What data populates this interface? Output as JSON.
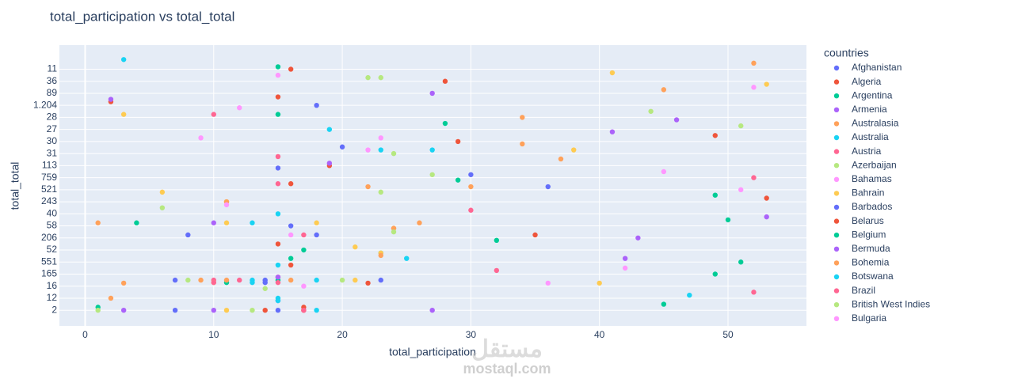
{
  "chart_data": {
    "type": "scatter",
    "title": "total_participation vs total_total",
    "x_label": "total_participation",
    "y_label": "total_total",
    "legend_title": "countries",
    "watermark": "مستقل",
    "watermark_sub": "mostaql.com",
    "xlim": [
      -2,
      56.1
    ],
    "xticks": [
      0,
      10,
      20,
      30,
      40,
      50
    ],
    "ylim": [
      -1.3,
      22.0
    ],
    "yticks": [
      {
        "value": 0,
        "label": "2"
      },
      {
        "value": 1,
        "label": "12"
      },
      {
        "value": 2,
        "label": "16"
      },
      {
        "value": 3,
        "label": "165"
      },
      {
        "value": 4,
        "label": "551"
      },
      {
        "value": 5,
        "label": "52"
      },
      {
        "value": 6,
        "label": "206"
      },
      {
        "value": 7,
        "label": "58"
      },
      {
        "value": 8,
        "label": "40"
      },
      {
        "value": 9,
        "label": "243"
      },
      {
        "value": 10,
        "label": "521"
      },
      {
        "value": 11,
        "label": "759"
      },
      {
        "value": 12,
        "label": "113"
      },
      {
        "value": 13,
        "label": "31"
      },
      {
        "value": 14,
        "label": "30"
      },
      {
        "value": 15,
        "label": "27"
      },
      {
        "value": 16,
        "label": "28"
      },
      {
        "value": 17,
        "label": "1.204"
      },
      {
        "value": 18,
        "label": "89"
      },
      {
        "value": 19,
        "label": "36"
      },
      {
        "value": 20,
        "label": "11"
      }
    ],
    "grid": true,
    "legend_position": "right",
    "series": [
      {
        "name": "Afghanistan",
        "color": "#636efa",
        "x": [
          18,
          20,
          15,
          30,
          36,
          16,
          8
        ],
        "values": [
          17,
          13.55,
          11.8,
          11.25,
          10.25,
          7,
          6.25
        ]
      },
      {
        "name": "Algeria",
        "color": "#EF553B",
        "x": [
          16,
          28,
          2,
          15,
          49,
          29,
          19,
          16
        ],
        "values": [
          20,
          19,
          17.3,
          17.7,
          14.5,
          14,
          12,
          10.5
        ]
      },
      {
        "name": "Argentina",
        "color": "#00cc96",
        "x": [
          15,
          15,
          28,
          29,
          49,
          4,
          50,
          32
        ],
        "values": [
          20.2,
          16.25,
          15.5,
          10.8,
          9.55,
          7.25,
          7.5,
          5.8
        ]
      },
      {
        "name": "Armenia",
        "color": "#ab63fa",
        "x": [
          27,
          2,
          46,
          41,
          19,
          53,
          10
        ],
        "values": [
          18,
          17.5,
          15.8,
          14.8,
          12.2,
          7.75,
          7.25
        ]
      },
      {
        "name": "Australasia",
        "color": "#FFA15A",
        "x": [
          52,
          45,
          34,
          34,
          37,
          22,
          30,
          1,
          26
        ],
        "values": [
          20.5,
          18.3,
          16,
          13.8,
          12.55,
          10.25,
          10.25,
          7.25,
          7.25
        ]
      },
      {
        "name": "Australia",
        "color": "#19d3f3",
        "x": [
          3,
          19,
          23,
          27,
          15,
          13,
          23,
          25
        ],
        "values": [
          20.8,
          15,
          13.3,
          13.3,
          8,
          7.25,
          4.75,
          4.3
        ]
      },
      {
        "name": "Austria",
        "color": "#FF6692",
        "x": [
          10,
          30,
          15,
          15,
          52,
          10,
          12
        ],
        "values": [
          16.25,
          8.3,
          12.75,
          10.5,
          11,
          2.5,
          2.5
        ]
      },
      {
        "name": "Azerbaijan",
        "color": "#B6E880",
        "x": [
          22,
          23,
          44,
          51,
          24,
          27,
          23
        ],
        "values": [
          19.3,
          19.3,
          16.5,
          15.3,
          13,
          11.25,
          9.8
        ]
      },
      {
        "name": "Bahamas",
        "color": "#FF97FF",
        "x": [
          15,
          52,
          12,
          9,
          23,
          22,
          45
        ],
        "values": [
          19.5,
          18.5,
          16.8,
          14.3,
          14.3,
          13.3,
          11.5
        ]
      },
      {
        "name": "Bahrain",
        "color": "#FECB52",
        "x": [
          41,
          53,
          3,
          38,
          6,
          11,
          11,
          18,
          24,
          21,
          23,
          40,
          21,
          10,
          11
        ],
        "values": [
          19.7,
          18.75,
          16.25,
          13.3,
          9.8,
          9,
          7.25,
          7.25,
          6.8,
          5.25,
          4.75,
          2.25,
          2.5,
          2.3,
          0
        ]
      },
      {
        "name": "Barbados",
        "color": "#636efa",
        "x": [
          18,
          7,
          14,
          14,
          23,
          15,
          7,
          15
        ],
        "values": [
          6.25,
          2.5,
          2.5,
          2.3,
          2.5,
          0.8,
          0,
          0
        ]
      },
      {
        "name": "Belarus",
        "color": "#EF553B",
        "x": [
          53,
          35,
          15,
          16,
          15,
          22,
          17,
          17,
          14
        ],
        "values": [
          9.3,
          6.25,
          5.5,
          3.75,
          2.75,
          2.25,
          0.25,
          0,
          0
        ]
      },
      {
        "name": "Belgium",
        "color": "#00cc96",
        "x": [
          17,
          16,
          15,
          11,
          49,
          51,
          45,
          1
        ],
        "values": [
          5,
          4.3,
          2.5,
          2.3,
          3,
          4,
          0.5,
          0.25
        ]
      },
      {
        "name": "Bermuda",
        "color": "#ab63fa",
        "x": [
          43,
          42,
          3,
          10,
          27,
          15
        ],
        "values": [
          6,
          4.3,
          0,
          0,
          0,
          2.75
        ]
      },
      {
        "name": "Bohemia",
        "color": "#FFA15A",
        "x": [
          11,
          23,
          3,
          9,
          11,
          16,
          2,
          24
        ],
        "values": [
          9,
          4.55,
          2.25,
          2.5,
          2.5,
          2.5,
          1,
          6.8
        ]
      },
      {
        "name": "Botswana",
        "color": "#19d3f3",
        "x": [
          15,
          13,
          13,
          18,
          47,
          15,
          15,
          18
        ],
        "values": [
          3.75,
          2.5,
          2.3,
          2.5,
          1.25,
          1,
          0.8,
          0
        ]
      },
      {
        "name": "Brazil",
        "color": "#FF6692",
        "x": [
          17,
          32,
          52,
          10,
          17,
          15
        ],
        "values": [
          6.25,
          3.3,
          1.5,
          2.3,
          0,
          2.3
        ]
      },
      {
        "name": "British West Indies",
        "color": "#B6E880",
        "x": [
          6,
          24,
          8,
          20,
          14,
          1,
          13
        ],
        "values": [
          8.5,
          6.5,
          2.5,
          2.5,
          1.8,
          0,
          0
        ]
      },
      {
        "name": "Bulgaria",
        "color": "#FF97FF",
        "x": [
          51,
          11,
          16,
          42,
          36,
          17
        ],
        "values": [
          10,
          8.75,
          6.25,
          3.5,
          2.25,
          2
        ]
      }
    ]
  }
}
